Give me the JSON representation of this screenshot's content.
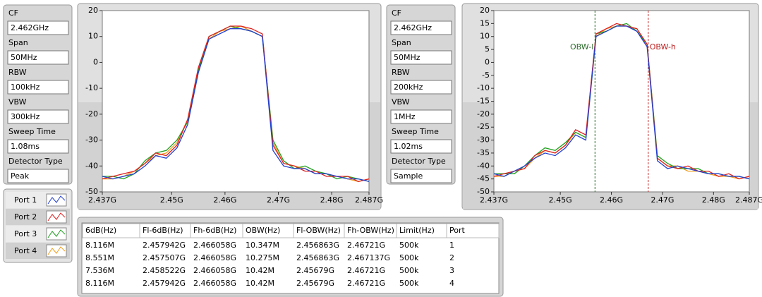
{
  "settings": [
    [
      {
        "label": "CF",
        "value": "2.462GHz"
      },
      {
        "label": "Span",
        "value": "50MHz"
      },
      {
        "label": "RBW",
        "value": "100kHz"
      },
      {
        "label": "VBW",
        "value": "300kHz"
      },
      {
        "label": "Sweep Time",
        "value": "1.08ms"
      },
      {
        "label": "Detector Type",
        "value": "Peak"
      }
    ],
    [
      {
        "label": "CF",
        "value": "2.462GHz"
      },
      {
        "label": "Span",
        "value": "50MHz"
      },
      {
        "label": "RBW",
        "value": "200kHz"
      },
      {
        "label": "VBW",
        "value": "1MHz"
      },
      {
        "label": "Sweep Time",
        "value": "1.02ms"
      },
      {
        "label": "Detector Type",
        "value": "Sample"
      }
    ]
  ],
  "chart_data": [
    {
      "type": "line",
      "x": [
        2.437,
        2.439,
        2.441,
        2.443,
        2.445,
        2.447,
        2.449,
        2.451,
        2.453,
        2.455,
        2.457,
        2.459,
        2.461,
        2.463,
        2.465,
        2.467,
        2.469,
        2.471,
        2.473,
        2.475,
        2.477,
        2.479,
        2.481,
        2.483,
        2.485,
        2.487
      ],
      "xlim": [
        2.437,
        2.487
      ],
      "xticks": [
        {
          "value": 2.437,
          "label": "2.437G"
        },
        {
          "value": 2.45,
          "label": "2.45G"
        },
        {
          "value": 2.46,
          "label": "2.46G"
        },
        {
          "value": 2.47,
          "label": "2.47G"
        },
        {
          "value": 2.48,
          "label": "2.48G"
        },
        {
          "value": 2.487,
          "label": "2.487G"
        }
      ],
      "ylim": [
        -50,
        20
      ],
      "yticks": [
        -50,
        -40,
        -30,
        -20,
        -10,
        0,
        10,
        20
      ],
      "series": [
        {
          "name": "Port 1",
          "color": "#2440d0",
          "values": [
            -44,
            -45,
            -44,
            -43,
            -40,
            -36,
            -37,
            -33,
            -24,
            -4,
            9,
            11,
            13,
            13,
            12,
            10,
            -34,
            -40,
            -41,
            -41,
            -43,
            -43,
            -44,
            -45,
            -45,
            -46
          ]
        },
        {
          "name": "Port 2",
          "color": "#e02020",
          "values": [
            -45,
            -44,
            -43,
            -42,
            -39,
            -35,
            -36,
            -32,
            -22,
            -2,
            10,
            12,
            14,
            14,
            13,
            11,
            -32,
            -39,
            -40,
            -42,
            -42,
            -44,
            -44,
            -44,
            -46,
            -45
          ]
        },
        {
          "name": "Port 3",
          "color": "#20a020",
          "values": [
            -44,
            -44,
            -45,
            -43,
            -38,
            -35,
            -34,
            -30,
            -23,
            -3,
            10,
            12,
            14,
            13,
            12,
            10,
            -30,
            -38,
            -41,
            -40,
            -42,
            -43,
            -45,
            -44,
            -45,
            -46
          ]
        },
        {
          "name": "Port 4",
          "color": "#f0a020",
          "values": [
            -45,
            -45,
            -44,
            -42,
            -39,
            -36,
            -35,
            -31,
            -22,
            -3,
            9,
            12,
            13,
            14,
            12,
            10,
            -31,
            -39,
            -40,
            -41,
            -43,
            -43,
            -44,
            -45,
            -46,
            -45
          ]
        }
      ]
    },
    {
      "type": "line",
      "x": [
        2.437,
        2.439,
        2.441,
        2.443,
        2.445,
        2.447,
        2.449,
        2.451,
        2.453,
        2.455,
        2.457,
        2.459,
        2.461,
        2.463,
        2.465,
        2.467,
        2.469,
        2.471,
        2.473,
        2.475,
        2.477,
        2.479,
        2.481,
        2.483,
        2.485,
        2.487
      ],
      "xlim": [
        2.437,
        2.487
      ],
      "xticks": [
        {
          "value": 2.437,
          "label": "2.437G"
        },
        {
          "value": 2.45,
          "label": "2.45G"
        },
        {
          "value": 2.46,
          "label": "2.46G"
        },
        {
          "value": 2.47,
          "label": "2.47G"
        },
        {
          "value": 2.48,
          "label": "2.48G"
        },
        {
          "value": 2.487,
          "label": "2.487G"
        }
      ],
      "ylim": [
        -50,
        20
      ],
      "yticks": [
        -50,
        -45,
        -40,
        -35,
        -30,
        -25,
        -20,
        -15,
        -10,
        -5,
        0,
        5,
        10,
        15,
        20
      ],
      "series": [
        {
          "color": "#2440d0",
          "values": [
            -43,
            -44,
            -42,
            -40,
            -37,
            -35,
            -36,
            -33,
            -28,
            -30,
            10,
            12,
            14,
            14,
            12,
            6,
            -38,
            -41,
            -40,
            -41,
            -42,
            -43,
            -43,
            -44,
            -44,
            -45
          ]
        },
        {
          "color": "#e02020",
          "values": [
            -44,
            -43,
            -42,
            -41,
            -36,
            -34,
            -35,
            -32,
            -26,
            -28,
            11,
            13,
            15,
            14,
            13,
            7,
            -37,
            -40,
            -41,
            -40,
            -42,
            -42,
            -44,
            -43,
            -45,
            -44
          ]
        },
        {
          "color": "#20a020",
          "values": [
            -43,
            -43,
            -43,
            -40,
            -36,
            -33,
            -34,
            -31,
            -27,
            -29,
            11,
            12,
            14,
            15,
            12,
            7,
            -36,
            -39,
            -41,
            -41,
            -41,
            -43,
            -43,
            -44,
            -44,
            -45
          ]
        },
        {
          "color": "#f0a020",
          "values": [
            -44,
            -44,
            -42,
            -41,
            -37,
            -34,
            -35,
            -32,
            -27,
            -29,
            10,
            13,
            14,
            14,
            13,
            6,
            -37,
            -40,
            -40,
            -42,
            -42,
            -43,
            -44,
            -44,
            -45,
            -44
          ]
        }
      ],
      "markers": [
        {
          "label": "OBW-l",
          "x": 2.45679,
          "color": "#2a6a2a"
        },
        {
          "label": "OBW-h",
          "x": 2.46721,
          "color": "#c02020"
        }
      ]
    }
  ],
  "table": {
    "columns": [
      "6dB(Hz)",
      "Fl-6dB(Hz)",
      "Fh-6dB(Hz)",
      "OBW(Hz)",
      "Fl-OBW(Hz)",
      "Fh-OBW(Hz)",
      "Limit(Hz)",
      "Port"
    ],
    "rows": [
      [
        "8.116M",
        "2.457942G",
        "2.466058G",
        "10.347M",
        "2.456863G",
        "2.46721G",
        "500k",
        "1"
      ],
      [
        "8.551M",
        "2.457507G",
        "2.466058G",
        "10.275M",
        "2.456863G",
        "2.467137G",
        "500k",
        "2"
      ],
      [
        "7.536M",
        "2.458522G",
        "2.466058G",
        "10.42M",
        "2.45679G",
        "2.46721G",
        "500k",
        "3"
      ],
      [
        "8.116M",
        "2.457942G",
        "2.466058G",
        "10.42M",
        "2.45679G",
        "2.46721G",
        "500k",
        "4"
      ]
    ]
  }
}
